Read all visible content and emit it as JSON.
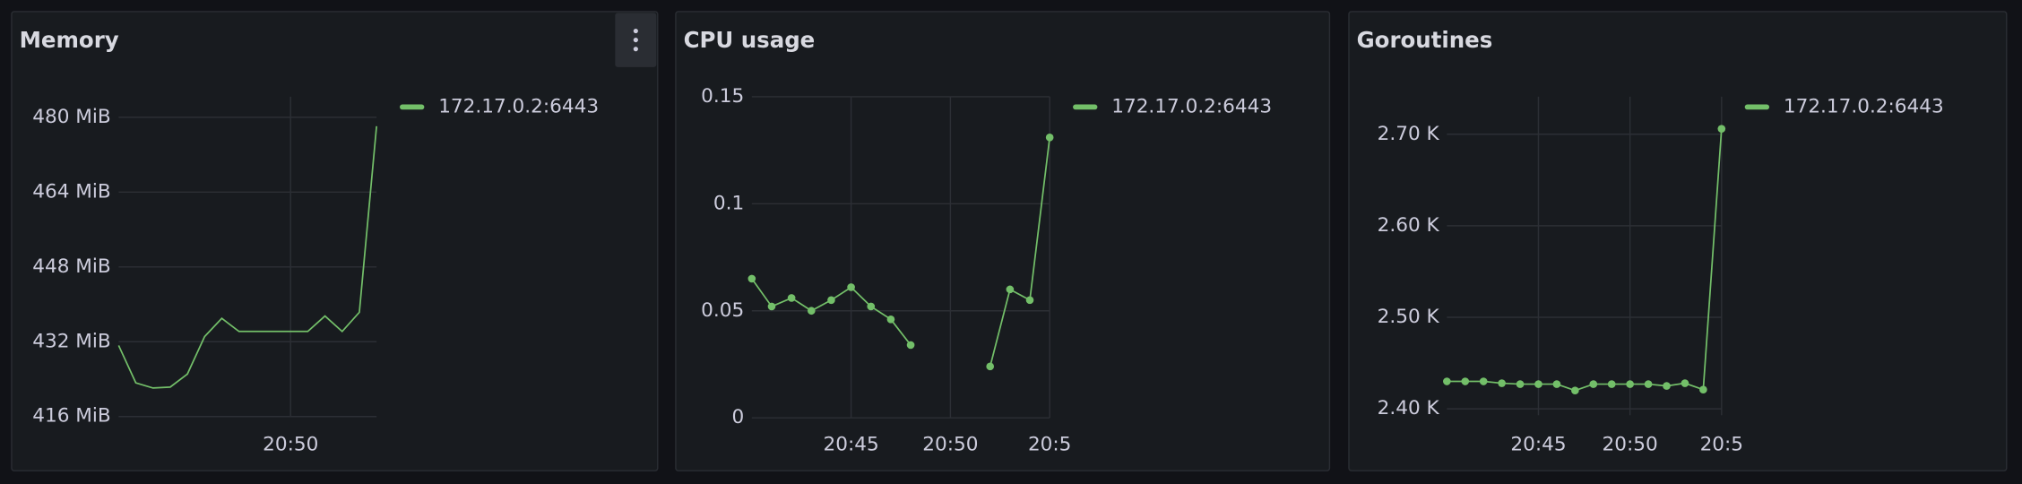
{
  "chart_data": [
    {
      "type": "line",
      "title": "Memory",
      "x": [
        1240,
        1241,
        1242,
        1243,
        1244,
        1245,
        1246,
        1247,
        1248,
        1249,
        1250,
        1251,
        1252,
        1253,
        1254,
        1255
      ],
      "series": [
        {
          "name": "172.17.0.2:6443",
          "color": "#73bf69",
          "values": [
            431.2,
            423.2,
            422.1,
            422.3,
            425.1,
            433.1,
            437.0,
            434.2,
            434.2,
            434.2,
            434.2,
            434.2,
            437.5,
            434.2,
            438.3,
            478.1
          ]
        }
      ],
      "xlim": [
        1240,
        1255
      ],
      "xticks": [
        {
          "value": 1250,
          "label": "20:50"
        }
      ],
      "ylim": [
        416,
        484.4
      ],
      "yticks": [
        {
          "value": 416,
          "label": "416 MiB"
        },
        {
          "value": 432,
          "label": "432 MiB"
        },
        {
          "value": 448,
          "label": "448 MiB"
        },
        {
          "value": 464,
          "label": "464 MiB"
        },
        {
          "value": 480,
          "label": "480 MiB"
        }
      ],
      "grid": true,
      "points": false,
      "legend": "right"
    },
    {
      "type": "line",
      "title": "CPU usage",
      "x": [
        1240,
        1241,
        1242,
        1243,
        1244,
        1245,
        1246,
        1247,
        1248,
        1249,
        1250,
        1251,
        1252,
        1253,
        1254,
        1255
      ],
      "series": [
        {
          "name": "172.17.0.2:6443",
          "color": "#73bf69",
          "values": [
            0.065,
            0.052,
            0.056,
            0.05,
            0.055,
            0.061,
            0.052,
            0.046,
            0.034,
            null,
            null,
            null,
            0.024,
            0.06,
            0.055,
            0.131
          ]
        }
      ],
      "xlim": [
        1240,
        1255
      ],
      "xticks": [
        {
          "value": 1245,
          "label": "20:45"
        },
        {
          "value": 1250,
          "label": "20:50"
        },
        {
          "value": 1255,
          "label": "20:5"
        }
      ],
      "ylim": [
        0,
        0.15
      ],
      "yticks": [
        0,
        0.05,
        0.1,
        0.15
      ],
      "grid": true,
      "points": true,
      "legend": "right"
    },
    {
      "type": "line",
      "title": "Goroutines",
      "x": [
        1240,
        1241,
        1242,
        1243,
        1244,
        1245,
        1246,
        1247,
        1248,
        1249,
        1250,
        1251,
        1252,
        1253,
        1254,
        1255
      ],
      "series": [
        {
          "name": "172.17.0.2:6443",
          "color": "#73bf69",
          "values": [
            2430,
            2430,
            2430,
            2428,
            2427,
            2427,
            2427,
            2420,
            2427,
            2427,
            2427,
            2427,
            2425,
            2428,
            2421,
            2706
          ]
        }
      ],
      "xlim": [
        1240,
        1255
      ],
      "xticks": [
        {
          "value": 1245,
          "label": "20:45"
        },
        {
          "value": 1250,
          "label": "20:50"
        },
        {
          "value": 1255,
          "label": "20:5"
        }
      ],
      "ylim": [
        2393,
        2741
      ],
      "yticks": [
        {
          "value": 2400,
          "label": "2.40 K"
        },
        {
          "value": 2500,
          "label": "2.50 K"
        },
        {
          "value": 2600,
          "label": "2.60 K"
        },
        {
          "value": 2700,
          "label": "2.70 K"
        }
      ],
      "grid": true,
      "points": true,
      "legend": "right"
    }
  ]
}
